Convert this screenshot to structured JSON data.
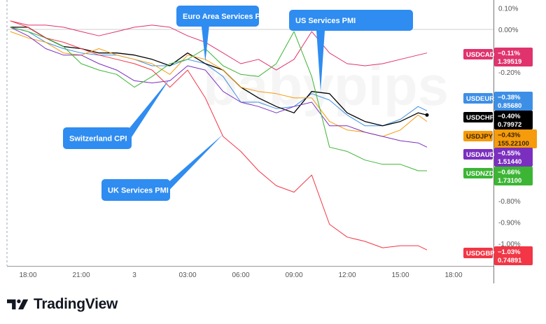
{
  "chart_data": {
    "type": "line",
    "title": "",
    "xlabel": "",
    "ylabel": "",
    "x_tick_labels": [
      "18:00",
      "21:00",
      "3",
      "03:00",
      "06:00",
      "09:00",
      "12:00",
      "15:00",
      "18:00"
    ],
    "y_tick_labels": [
      "0.10%",
      "0.00%",
      "-0.20%",
      "-0.80%",
      "-0.90%",
      "-1.00%"
    ],
    "y_ticks": [
      0.1,
      0.0,
      -0.2,
      -0.8,
      -0.9,
      -1.0
    ],
    "y_unit": "%",
    "ylim": [
      -1.1,
      0.13
    ],
    "grid": false,
    "x": [
      "17:00",
      "18:00",
      "19:00",
      "20:00",
      "21:00",
      "22:00",
      "23:00",
      "00:00",
      "01:00",
      "02:00",
      "03:00",
      "04:00",
      "05:00",
      "06:00",
      "07:00",
      "08:00",
      "09:00",
      "10:00",
      "11:00",
      "12:00",
      "13:00",
      "14:00",
      "15:00",
      "16:00",
      "16:30"
    ],
    "series": [
      {
        "name": "USDCAD",
        "color": "#e0336e",
        "last_pct": "−0.11%",
        "last_price": "1.39519",
        "values": [
          0.04,
          0.02,
          0.02,
          0.01,
          -0.01,
          -0.03,
          -0.01,
          0.01,
          0.02,
          0.01,
          -0.03,
          -0.06,
          -0.11,
          -0.16,
          -0.14,
          -0.19,
          -0.14,
          -0.01,
          -0.11,
          -0.16,
          -0.17,
          -0.16,
          -0.14,
          -0.12,
          -0.11
        ]
      },
      {
        "name": "USDEUR",
        "color": "#3d8fe6",
        "last_pct": "−0.38%",
        "last_price": "0.85680",
        "values": [
          0.01,
          -0.01,
          -0.06,
          -0.09,
          -0.11,
          -0.12,
          -0.12,
          -0.14,
          -0.17,
          -0.17,
          -0.14,
          -0.16,
          -0.22,
          -0.34,
          -0.34,
          -0.37,
          -0.36,
          -0.3,
          -0.33,
          -0.4,
          -0.45,
          -0.45,
          -0.42,
          -0.36,
          -0.38
        ]
      },
      {
        "name": "USDCHF",
        "color": "#000000",
        "last_pct": "−0.40%",
        "last_price": "0.79972",
        "values": [
          0.01,
          0.01,
          -0.04,
          -0.08,
          -0.09,
          -0.11,
          -0.11,
          -0.12,
          -0.14,
          -0.17,
          -0.11,
          -0.16,
          -0.19,
          -0.27,
          -0.32,
          -0.36,
          -0.39,
          -0.29,
          -0.3,
          -0.39,
          -0.43,
          -0.45,
          -0.43,
          -0.39,
          -0.4
        ]
      },
      {
        "name": "USDJPY",
        "color": "#f59b0c",
        "last_pct": "−0.43%",
        "last_price": "155.22100",
        "values": [
          -0.01,
          -0.04,
          -0.06,
          -0.11,
          -0.12,
          -0.09,
          -0.12,
          -0.14,
          -0.16,
          -0.21,
          -0.12,
          -0.14,
          -0.19,
          -0.27,
          -0.29,
          -0.3,
          -0.32,
          -0.32,
          -0.43,
          -0.47,
          -0.48,
          -0.5,
          -0.47,
          -0.4,
          -0.43
        ]
      },
      {
        "name": "USDAUD",
        "color": "#7b2fbf",
        "last_pct": "−0.55%",
        "last_price": "1.51440",
        "values": [
          0.01,
          -0.03,
          -0.09,
          -0.12,
          -0.12,
          -0.16,
          -0.19,
          -0.24,
          -0.25,
          -0.24,
          -0.17,
          -0.19,
          -0.29,
          -0.34,
          -0.36,
          -0.39,
          -0.36,
          -0.34,
          -0.45,
          -0.45,
          -0.48,
          -0.5,
          -0.52,
          -0.53,
          -0.55
        ]
      },
      {
        "name": "USDNZD",
        "color": "#3cb534",
        "last_pct": "−0.66%",
        "last_price": "1.73100",
        "values": [
          0.01,
          -0.01,
          -0.04,
          -0.08,
          -0.16,
          -0.19,
          -0.21,
          -0.27,
          -0.22,
          -0.16,
          -0.14,
          -0.09,
          -0.17,
          -0.21,
          -0.22,
          -0.16,
          -0.01,
          -0.22,
          -0.55,
          -0.57,
          -0.61,
          -0.63,
          -0.63,
          -0.66,
          -0.66
        ]
      },
      {
        "name": "USDGBP",
        "color": "#f23645",
        "last_pct": "−1.03%",
        "last_price": "0.74891",
        "values": [
          0.04,
          0.01,
          -0.04,
          -0.06,
          -0.09,
          -0.12,
          -0.14,
          -0.16,
          -0.19,
          -0.27,
          -0.19,
          -0.32,
          -0.5,
          -0.57,
          -0.66,
          -0.73,
          -0.76,
          -0.68,
          -0.91,
          -0.97,
          -0.99,
          -1.02,
          -1.01,
          -1.01,
          -1.03
        ]
      }
    ],
    "annotations": [
      {
        "text": "Euro Area Services PMI",
        "time": "04:00",
        "value": -0.15
      },
      {
        "text": "US Services PMI",
        "time": "10:30",
        "value": -0.29
      },
      {
        "text": "Switzerland CPI",
        "time": "02:00",
        "value": -0.23
      },
      {
        "text": "UK Services PMI",
        "time": "05:00",
        "value": -0.49
      }
    ],
    "annotation_color": "#2f8cf0",
    "watermark": "babypips"
  },
  "branding": {
    "name": "TradingView"
  }
}
